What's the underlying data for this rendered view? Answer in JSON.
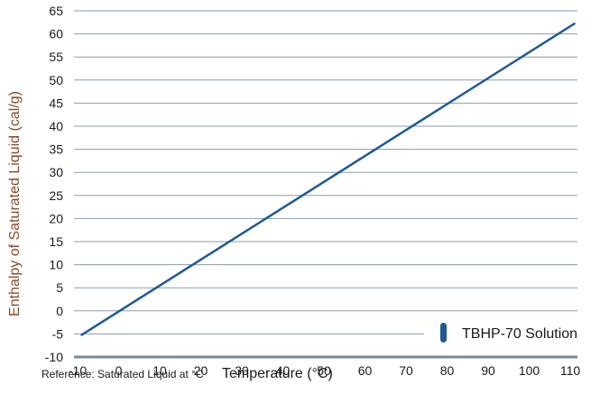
{
  "chart_data": {
    "type": "line",
    "title": "",
    "xlabel": "Temperature (°C)",
    "ylabel": "Enthalpy of Saturated Liquid (cal/g)",
    "note": "Reference: Saturated Liquid at °C",
    "xlim": [
      -10,
      110
    ],
    "ylim": [
      -10,
      65
    ],
    "x_ticks": [
      -10,
      0,
      10,
      20,
      30,
      40,
      50,
      60,
      70,
      80,
      90,
      100,
      110
    ],
    "y_ticks": [
      -10,
      -5,
      0,
      5,
      10,
      15,
      20,
      25,
      30,
      35,
      40,
      45,
      50,
      55,
      60,
      65
    ],
    "grid": "horizontal",
    "legend_position": "bottom-right",
    "series": [
      {
        "name": "TBHP-70 Solution",
        "color": "#1f5a96",
        "x": [
          -9,
          111
        ],
        "y": [
          -5.2,
          62.2
        ]
      }
    ]
  }
}
